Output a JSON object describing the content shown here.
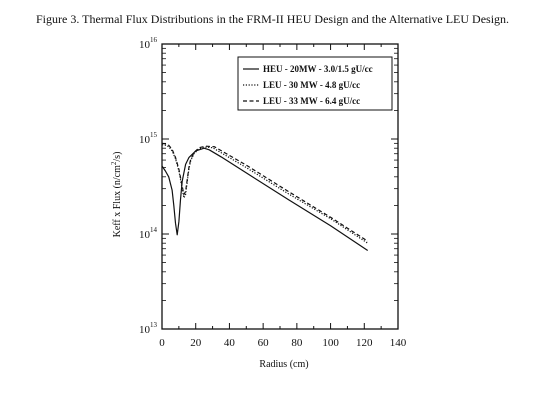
{
  "caption": "Figure 3. Thermal Flux Distributions in the FRM-II HEU Design and the Alternative LEU Design.",
  "chart_data": {
    "type": "line",
    "x_label": "Radius (cm)",
    "y_label_parts": [
      "Keff x Flux (n/cm",
      "2",
      "/s)"
    ],
    "x_ticks": [
      0,
      20,
      40,
      60,
      80,
      100,
      120,
      140
    ],
    "x_range": [
      0,
      140
    ],
    "y_scale": "log",
    "y_range": [
      10000000000000.0,
      1e+16
    ],
    "y_ticks": [
      {
        "value": 10000000000000.0,
        "base": "10",
        "exp": "13"
      },
      {
        "value": 100000000000000.0,
        "base": "10",
        "exp": "14"
      },
      {
        "value": 1000000000000000.0,
        "base": "10",
        "exp": "15"
      },
      {
        "value": 1e+16,
        "base": "10",
        "exp": "16"
      }
    ],
    "grid": false,
    "legend_position": "top-right",
    "series": [
      {
        "name": "HEU - 20MW - 3.0/1.5 gU/cc",
        "dash": "solid",
        "color": "#111111",
        "x": [
          0,
          2,
          4,
          6,
          7,
          8,
          9,
          10,
          11,
          12,
          14,
          16,
          20,
          25,
          28,
          35,
          50,
          75,
          100,
          122
        ],
        "y": [
          520000000000000.0,
          460000000000000.0,
          400000000000000.0,
          290000000000000.0,
          200000000000000.0,
          130000000000000.0,
          98000000000000.0,
          135000000000000.0,
          230000000000000.0,
          360000000000000.0,
          540000000000000.0,
          640000000000000.0,
          750000000000000.0,
          800000000000000.0,
          770000000000000.0,
          650000000000000.0,
          440000000000000.0,
          230000000000000.0,
          122000000000000.0,
          67000000000000.0
        ]
      },
      {
        "name": "LEU - 30 MW - 4.8 gU/cc",
        "dash": "dotted",
        "color": "#111111",
        "x": [
          0,
          2,
          4,
          6,
          8,
          10,
          12,
          13,
          14,
          15,
          16,
          17,
          19,
          22,
          26,
          30,
          50,
          75,
          100,
          122
        ],
        "y": [
          870000000000000.0,
          860000000000000.0,
          830000000000000.0,
          750000000000000.0,
          620000000000000.0,
          460000000000000.0,
          300000000000000.0,
          240000000000000.0,
          260000000000000.0,
          360000000000000.0,
          490000000000000.0,
          590000000000000.0,
          700000000000000.0,
          790000000000000.0,
          820000000000000.0,
          810000000000000.0,
          500000000000000.0,
          265000000000000.0,
          145000000000000.0,
          80000000000000.0
        ]
      },
      {
        "name": "LEU - 33 MW - 6.4 gU/cc",
        "dash": "dashed",
        "color": "#111111",
        "x": [
          0,
          2,
          4,
          6,
          8,
          10,
          12,
          13,
          14,
          15,
          16,
          17,
          19,
          22,
          26,
          31,
          50,
          75,
          100,
          122
        ],
        "y": [
          900000000000000.0,
          890000000000000.0,
          860000000000000.0,
          780000000000000.0,
          640000000000000.0,
          480000000000000.0,
          320000000000000.0,
          260000000000000.0,
          280000000000000.0,
          380000000000000.0,
          510000000000000.0,
          610000000000000.0,
          720000000000000.0,
          810000000000000.0,
          840000000000000.0,
          830000000000000.0,
          530000000000000.0,
          280000000000000.0,
          150000000000000.0,
          84000000000000.0
        ]
      }
    ]
  }
}
